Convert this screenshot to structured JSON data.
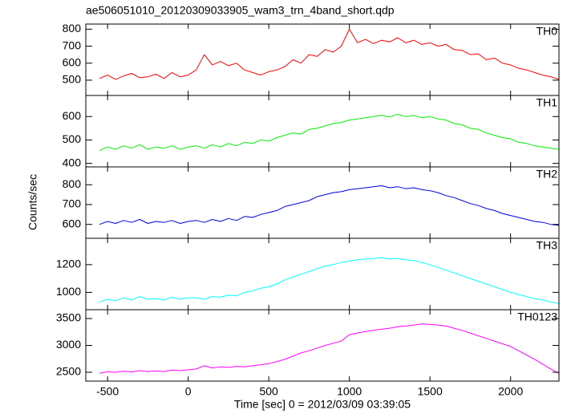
{
  "chart_data": {
    "type": "line",
    "title": "ae506051010_20120309033905_wam3_trn_4band_short.qdp",
    "x_label": "Time [sec] 0 = 2012/03/09 03:39:05",
    "y_label": "Counts/sec",
    "xlim": [
      -635,
      2300
    ],
    "xticks": [
      -500,
      0,
      500,
      1000,
      1500,
      2000
    ],
    "x": [
      -550,
      -500,
      -450,
      -400,
      -350,
      -300,
      -250,
      -200,
      -150,
      -100,
      -50,
      0,
      50,
      100,
      150,
      200,
      250,
      300,
      350,
      400,
      450,
      500,
      550,
      600,
      650,
      700,
      750,
      800,
      850,
      900,
      950,
      1000,
      1050,
      1100,
      1150,
      1200,
      1250,
      1300,
      1350,
      1400,
      1450,
      1500,
      1550,
      1600,
      1650,
      1700,
      1750,
      1800,
      1850,
      1900,
      1950,
      2000,
      2050,
      2100,
      2150,
      2200,
      2250,
      2300
    ],
    "series": [
      {
        "name": "TH0",
        "color": "#ff0000",
        "ylim": [
          410,
          830
        ],
        "yticks": [
          500,
          600,
          700,
          800
        ],
        "values": [
          510,
          530,
          505,
          525,
          540,
          515,
          520,
          535,
          510,
          545,
          520,
          530,
          560,
          650,
          590,
          610,
          585,
          600,
          560,
          545,
          530,
          550,
          560,
          580,
          620,
          600,
          650,
          640,
          680,
          665,
          700,
          800,
          720,
          740,
          715,
          735,
          725,
          750,
          720,
          735,
          710,
          720,
          700,
          710,
          680,
          675,
          650,
          655,
          620,
          630,
          600,
          590,
          570,
          560,
          545,
          530,
          520,
          505
        ]
      },
      {
        "name": "TH1",
        "color": "#00ee00",
        "ylim": [
          385,
          690
        ],
        "yticks": [
          400,
          500,
          600
        ],
        "values": [
          455,
          470,
          460,
          475,
          465,
          480,
          460,
          470,
          465,
          475,
          460,
          470,
          475,
          465,
          480,
          470,
          485,
          475,
          490,
          485,
          500,
          495,
          510,
          520,
          530,
          525,
          545,
          550,
          560,
          570,
          575,
          585,
          590,
          595,
          600,
          605,
          598,
          610,
          600,
          605,
          595,
          600,
          590,
          585,
          570,
          565,
          550,
          545,
          530,
          520,
          510,
          505,
          490,
          485,
          475,
          470,
          465,
          460
        ]
      },
      {
        "name": "TH2",
        "color": "#0000dd",
        "ylim": [
          530,
          890
        ],
        "yticks": [
          600,
          700,
          800
        ],
        "values": [
          600,
          615,
          605,
          620,
          610,
          625,
          605,
          615,
          610,
          620,
          605,
          615,
          620,
          610,
          625,
          615,
          630,
          620,
          640,
          635,
          650,
          660,
          670,
          690,
          700,
          710,
          720,
          740,
          750,
          760,
          765,
          775,
          780,
          785,
          790,
          795,
          785,
          790,
          780,
          785,
          775,
          770,
          760,
          745,
          735,
          720,
          705,
          695,
          680,
          670,
          655,
          645,
          635,
          625,
          615,
          610,
          600,
          595
        ]
      },
      {
        "name": "TH3",
        "color": "#00ffff",
        "ylim": [
          875,
          1390
        ],
        "yticks": [
          1000,
          1200
        ],
        "values": [
          930,
          950,
          940,
          960,
          945,
          970,
          950,
          955,
          945,
          965,
          950,
          960,
          960,
          950,
          970,
          965,
          980,
          975,
          1000,
          1010,
          1030,
          1040,
          1060,
          1090,
          1110,
          1130,
          1150,
          1170,
          1190,
          1200,
          1215,
          1225,
          1235,
          1240,
          1245,
          1250,
          1240,
          1245,
          1235,
          1230,
          1215,
          1200,
          1180,
          1160,
          1140,
          1120,
          1100,
          1080,
          1060,
          1040,
          1020,
          1000,
          985,
          970,
          955,
          945,
          930,
          920
        ]
      },
      {
        "name": "TH0123",
        "color": "#ff00ff",
        "ylim": [
          2335,
          3665
        ],
        "yticks": [
          2500,
          3000,
          3500
        ],
        "values": [
          2480,
          2510,
          2500,
          2520,
          2505,
          2530,
          2510,
          2525,
          2515,
          2540,
          2530,
          2545,
          2560,
          2620,
          2580,
          2600,
          2590,
          2610,
          2600,
          2620,
          2640,
          2660,
          2700,
          2740,
          2800,
          2860,
          2900,
          2950,
          3000,
          3040,
          3080,
          3200,
          3230,
          3260,
          3280,
          3300,
          3320,
          3350,
          3360,
          3380,
          3400,
          3390,
          3380,
          3360,
          3320,
          3280,
          3230,
          3180,
          3130,
          3080,
          3030,
          2980,
          2900,
          2820,
          2740,
          2650,
          2560,
          2480
        ]
      }
    ]
  }
}
